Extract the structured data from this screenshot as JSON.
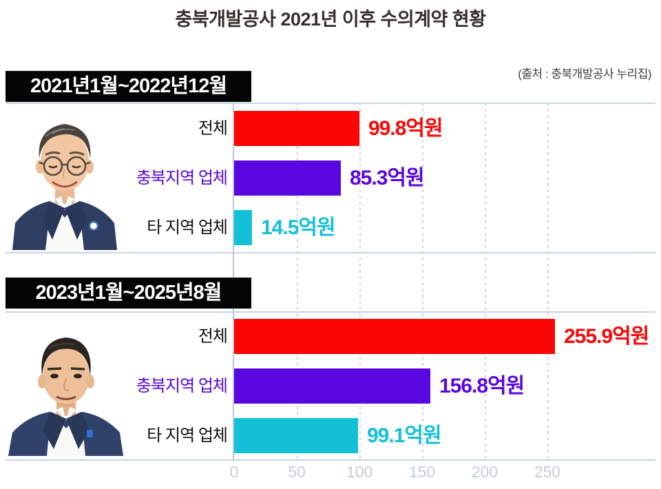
{
  "title": "충북개발공사 2021년 이후 수의계약 현황",
  "source_note": "(출처 : 충북개발공사 누리집)",
  "colors": {
    "total_bar": "#fb0505",
    "local_bar": "#5a06e0",
    "other_bar": "#12c0d8",
    "header_bg": "#040404",
    "header_text": "#ffffff",
    "grid": "#c9d3e1",
    "tick_text": "#c3ceda",
    "title_text": "#35302f"
  },
  "x_axis": {
    "ticks": [
      0,
      50,
      100,
      150,
      200,
      250
    ],
    "tick_labels": [
      "0",
      "50",
      "100",
      "150",
      "200",
      "250"
    ],
    "max": 300
  },
  "chart_data": [
    {
      "type": "bar",
      "orientation": "horizontal",
      "period_label": "2021년1월~2022년12월",
      "categories": [
        "전체",
        "충북지역 업체",
        "타 지역 업체"
      ],
      "values": [
        99.8,
        85.3,
        14.5
      ],
      "value_labels": [
        "99.8억원",
        "85.3억원",
        "14.5억원"
      ],
      "bar_colors": [
        "#fb0505",
        "#5a06e0",
        "#12c0d8"
      ],
      "category_colors": [
        "#111111",
        "#5a06e0",
        "#111111"
      ],
      "xlim": [
        0,
        300
      ],
      "gridlines": [
        50,
        100,
        150,
        200,
        250
      ],
      "unit": "억원",
      "legend": "none",
      "grid": "dashed-vertical"
    },
    {
      "type": "bar",
      "orientation": "horizontal",
      "period_label": "2023년1월~2025년8월",
      "categories": [
        "전체",
        "충북지역 업체",
        "타 지역 업체"
      ],
      "values": [
        255.9,
        156.8,
        99.1
      ],
      "value_labels": [
        "255.9억원",
        "156.8억원",
        "99.1억원"
      ],
      "bar_colors": [
        "#fb0505",
        "#5a06e0",
        "#12c0d8"
      ],
      "category_colors": [
        "#111111",
        "#5a06e0",
        "#111111"
      ],
      "xlim": [
        0,
        300
      ],
      "gridlines": [
        50,
        100,
        150,
        200,
        250
      ],
      "unit": "억원",
      "legend": "none",
      "grid": "dashed-vertical"
    }
  ]
}
